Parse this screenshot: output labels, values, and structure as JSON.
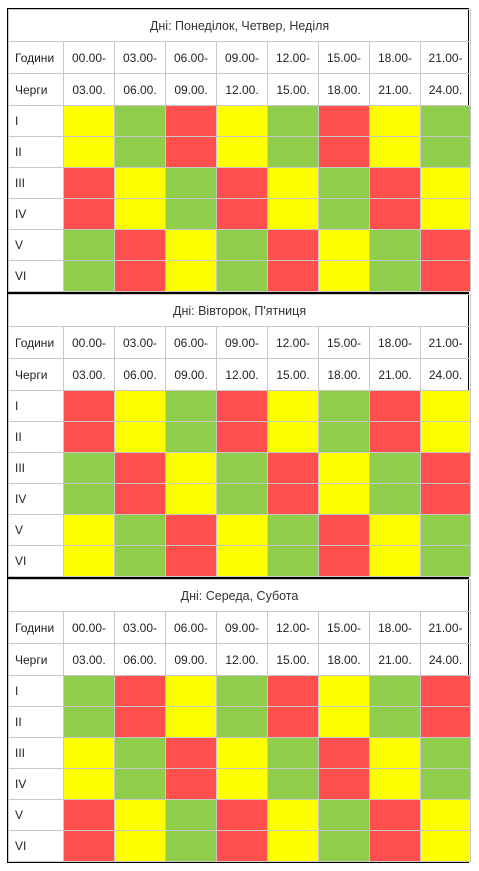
{
  "header_labels": {
    "hours": "Години",
    "queues": "Черги"
  },
  "hours_start": [
    "00.00-",
    "03.00-",
    "06.00-",
    "09.00-",
    "12.00-",
    "15.00-",
    "18.00-",
    "21.00-"
  ],
  "hours_end": [
    "03.00.",
    "06.00.",
    "09.00.",
    "12.00.",
    "15.00.",
    "18.00.",
    "21.00.",
    "24.00."
  ],
  "queue_names": [
    "I",
    "II",
    "III",
    "IV",
    "V",
    "VI"
  ],
  "status_colors": {
    "red": "#ff4f4f",
    "yellow": "#ffff00",
    "green": "#8fce4c"
  },
  "sections": [
    {
      "days": "Дні: Понеділок, Четвер, Неділя",
      "grid": [
        [
          "yellow",
          "green",
          "red",
          "yellow",
          "green",
          "red",
          "yellow",
          "green"
        ],
        [
          "yellow",
          "green",
          "red",
          "yellow",
          "green",
          "red",
          "yellow",
          "green"
        ],
        [
          "red",
          "yellow",
          "green",
          "red",
          "yellow",
          "green",
          "red",
          "yellow"
        ],
        [
          "red",
          "yellow",
          "green",
          "red",
          "yellow",
          "green",
          "red",
          "yellow"
        ],
        [
          "green",
          "red",
          "yellow",
          "green",
          "red",
          "yellow",
          "green",
          "red"
        ],
        [
          "green",
          "red",
          "yellow",
          "green",
          "red",
          "yellow",
          "green",
          "red"
        ]
      ]
    },
    {
      "days": "Дні: Вівторок, П'ятниця",
      "grid": [
        [
          "red",
          "yellow",
          "green",
          "red",
          "yellow",
          "green",
          "red",
          "yellow"
        ],
        [
          "red",
          "yellow",
          "green",
          "red",
          "yellow",
          "green",
          "red",
          "yellow"
        ],
        [
          "green",
          "red",
          "yellow",
          "green",
          "red",
          "yellow",
          "green",
          "red"
        ],
        [
          "green",
          "red",
          "yellow",
          "green",
          "red",
          "yellow",
          "green",
          "red"
        ],
        [
          "yellow",
          "green",
          "red",
          "yellow",
          "green",
          "red",
          "yellow",
          "green"
        ],
        [
          "yellow",
          "green",
          "red",
          "yellow",
          "green",
          "red",
          "yellow",
          "green"
        ]
      ]
    },
    {
      "days": "Дні: Середа, Субота",
      "grid": [
        [
          "green",
          "red",
          "yellow",
          "green",
          "red",
          "yellow",
          "green",
          "red"
        ],
        [
          "green",
          "red",
          "yellow",
          "green",
          "red",
          "yellow",
          "green",
          "red"
        ],
        [
          "yellow",
          "green",
          "red",
          "yellow",
          "green",
          "red",
          "yellow",
          "green"
        ],
        [
          "yellow",
          "green",
          "red",
          "yellow",
          "green",
          "red",
          "yellow",
          "green"
        ],
        [
          "red",
          "yellow",
          "green",
          "red",
          "yellow",
          "green",
          "red",
          "yellow"
        ],
        [
          "red",
          "yellow",
          "green",
          "red",
          "yellow",
          "green",
          "red",
          "yellow"
        ]
      ]
    }
  ]
}
